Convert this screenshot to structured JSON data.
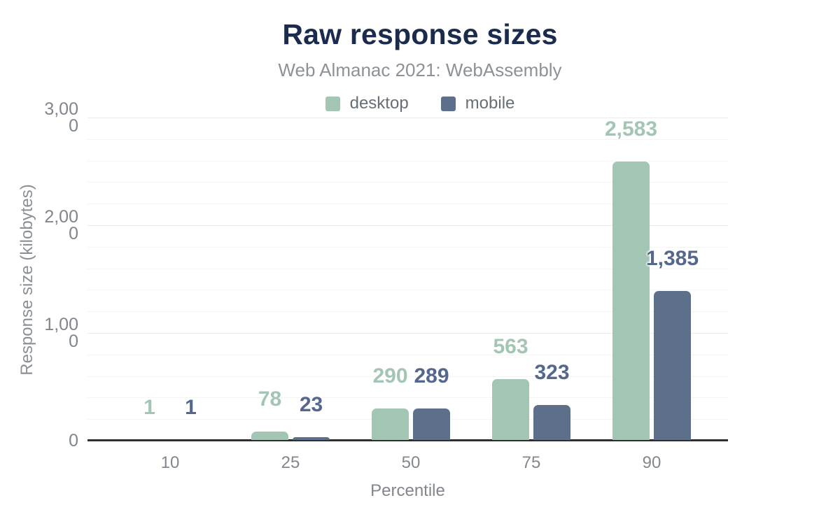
{
  "chart_data": {
    "type": "bar",
    "title": "Raw response sizes",
    "subtitle": "Web Almanac 2021: WebAssembly",
    "categories": [
      "10",
      "25",
      "50",
      "75",
      "90"
    ],
    "series": [
      {
        "name": "desktop",
        "color": "#a3c6b4",
        "label_color": "#a3c6b4",
        "values": [
          1,
          78,
          290,
          563,
          2583
        ],
        "data_labels": [
          "1",
          "78",
          "290",
          "563",
          "2,583"
        ]
      },
      {
        "name": "mobile",
        "color": "#5e7089",
        "label_color": "#55678c",
        "values": [
          1,
          23,
          289,
          323,
          1385
        ],
        "data_labels": [
          "1",
          "23",
          "289",
          "323",
          "1,385"
        ]
      }
    ],
    "xlabel": "Percentile",
    "ylabel": "Response size (kilobytes)",
    "ylim": [
      0,
      3000
    ],
    "y_ticks": [
      {
        "value": 3000,
        "label": "3,00\n0"
      },
      {
        "value": 2000,
        "label": "2,00\n0"
      },
      {
        "value": 1000,
        "label": "1,00\n0"
      },
      {
        "value": 0,
        "label": "0"
      }
    ],
    "grid": {
      "on": true,
      "minor_step": 200,
      "major_step": 1000
    },
    "legend_position": "top",
    "axis_color": "#2f2f2f"
  }
}
